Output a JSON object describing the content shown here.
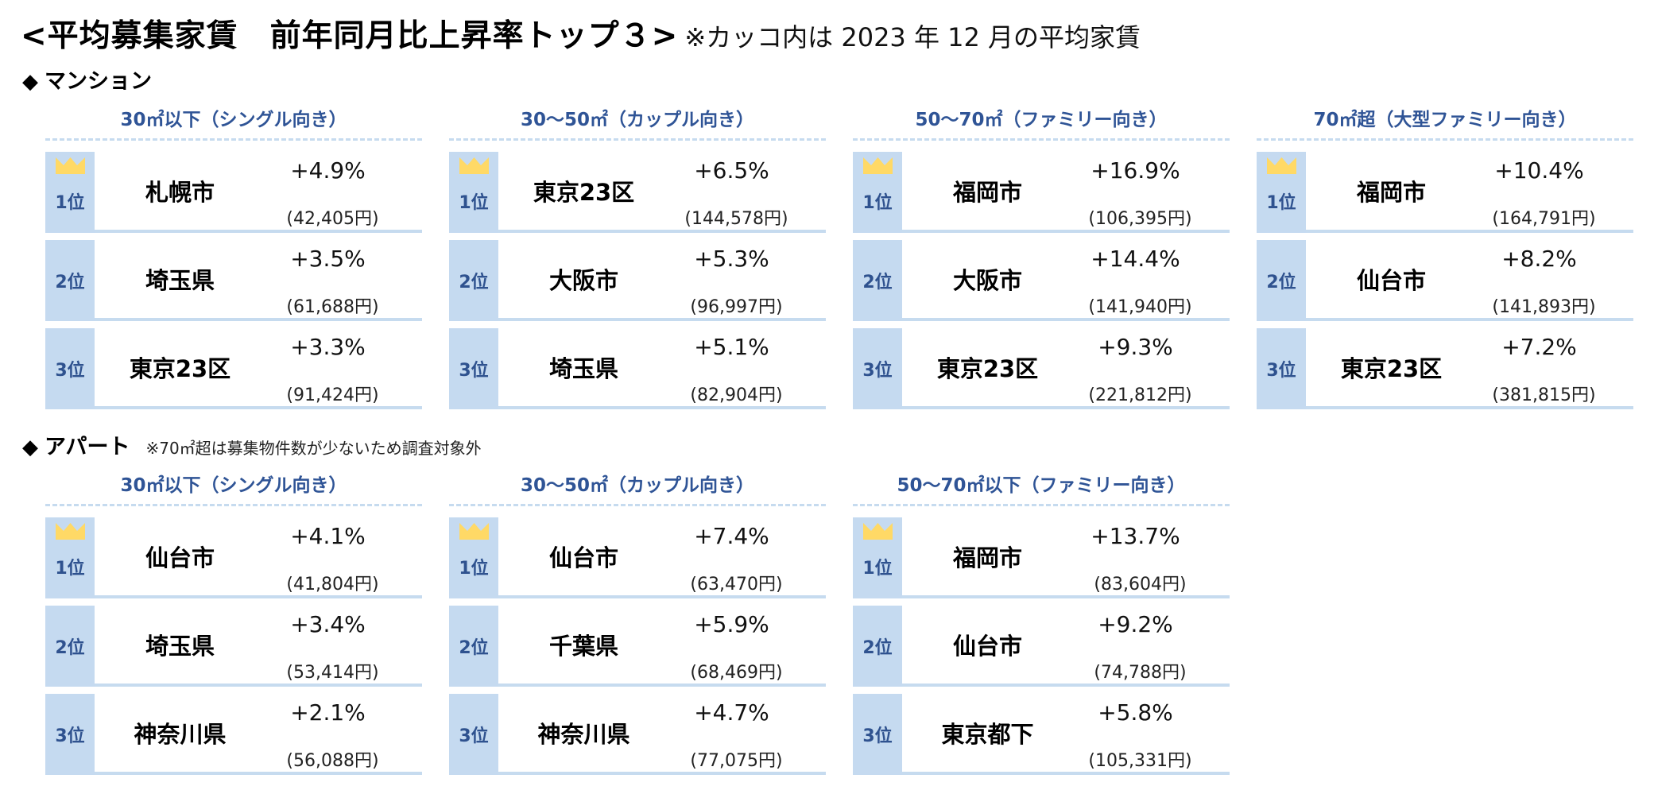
{
  "title": {
    "main": "<平均募集家賃　前年同月比上昇率トップ３>",
    "note": "※カッコ内は 2023 年 12 月の平均家賃"
  },
  "colors": {
    "header_text": "#2f5496",
    "rank_bg": "#c5daf0",
    "rank_text": "#2f528f",
    "crown": "#ffd966",
    "divider": "#c6dbef"
  },
  "icons": {
    "section_marker": "◆",
    "first_place": "crown-icon"
  },
  "mansion": {
    "heading": "マンション",
    "blocks": [
      {
        "header": "30㎡以下（シングル向き）",
        "rows": [
          {
            "rank": "1位",
            "city": "札幌市",
            "pct": "+4.9%",
            "rent": "(42,405円)"
          },
          {
            "rank": "2位",
            "city": "埼玉県",
            "pct": "+3.5%",
            "rent": "(61,688円)"
          },
          {
            "rank": "3位",
            "city": "東京23区",
            "pct": "+3.3%",
            "rent": "(91,424円)"
          }
        ]
      },
      {
        "header": "30～50㎡（カップル向き）",
        "rows": [
          {
            "rank": "1位",
            "city": "東京23区",
            "pct": "+6.5%",
            "rent": "(144,578円)"
          },
          {
            "rank": "2位",
            "city": "大阪市",
            "pct": "+5.3%",
            "rent": "(96,997円)"
          },
          {
            "rank": "3位",
            "city": "埼玉県",
            "pct": "+5.1%",
            "rent": "(82,904円)"
          }
        ]
      },
      {
        "header": "50～70㎡（ファミリー向き）",
        "rows": [
          {
            "rank": "1位",
            "city": "福岡市",
            "pct": "+16.9%",
            "rent": "(106,395円)"
          },
          {
            "rank": "2位",
            "city": "大阪市",
            "pct": "+14.4%",
            "rent": "(141,940円)"
          },
          {
            "rank": "3位",
            "city": "東京23区",
            "pct": "+9.3%",
            "rent": "(221,812円)"
          }
        ]
      },
      {
        "header": "70㎡超（大型ファミリー向き）",
        "rows": [
          {
            "rank": "1位",
            "city": "福岡市",
            "pct": "+10.4%",
            "rent": "(164,791円)"
          },
          {
            "rank": "2位",
            "city": "仙台市",
            "pct": "+8.2%",
            "rent": "(141,893円)"
          },
          {
            "rank": "3位",
            "city": "東京23区",
            "pct": "+7.2%",
            "rent": "(381,815円)"
          }
        ]
      }
    ]
  },
  "apartment": {
    "heading": "アパート",
    "note": "※70㎡超は募集物件数が少ないため調査対象外",
    "blocks": [
      {
        "header": "30㎡以下（シングル向き）",
        "rows": [
          {
            "rank": "1位",
            "city": "仙台市",
            "pct": "+4.1%",
            "rent": "(41,804円)"
          },
          {
            "rank": "2位",
            "city": "埼玉県",
            "pct": "+3.4%",
            "rent": "(53,414円)"
          },
          {
            "rank": "3位",
            "city": "神奈川県",
            "pct": "+2.1%",
            "rent": "(56,088円)"
          }
        ]
      },
      {
        "header": "30～50㎡（カップル向き）",
        "rows": [
          {
            "rank": "1位",
            "city": "仙台市",
            "pct": "+7.4%",
            "rent": "(63,470円)"
          },
          {
            "rank": "2位",
            "city": "千葉県",
            "pct": "+5.9%",
            "rent": "(68,469円)"
          },
          {
            "rank": "3位",
            "city": "神奈川県",
            "pct": "+4.7%",
            "rent": "(77,075円)"
          }
        ]
      },
      {
        "header": "50～70㎡以下（ファミリー向き）",
        "rows": [
          {
            "rank": "1位",
            "city": "福岡市",
            "pct": "+13.7%",
            "rent": "(83,604円)"
          },
          {
            "rank": "2位",
            "city": "仙台市",
            "pct": "+9.2%",
            "rent": "(74,788円)"
          },
          {
            "rank": "3位",
            "city": "東京都下",
            "pct": "+5.8%",
            "rent": "(105,331円)"
          }
        ]
      }
    ]
  }
}
